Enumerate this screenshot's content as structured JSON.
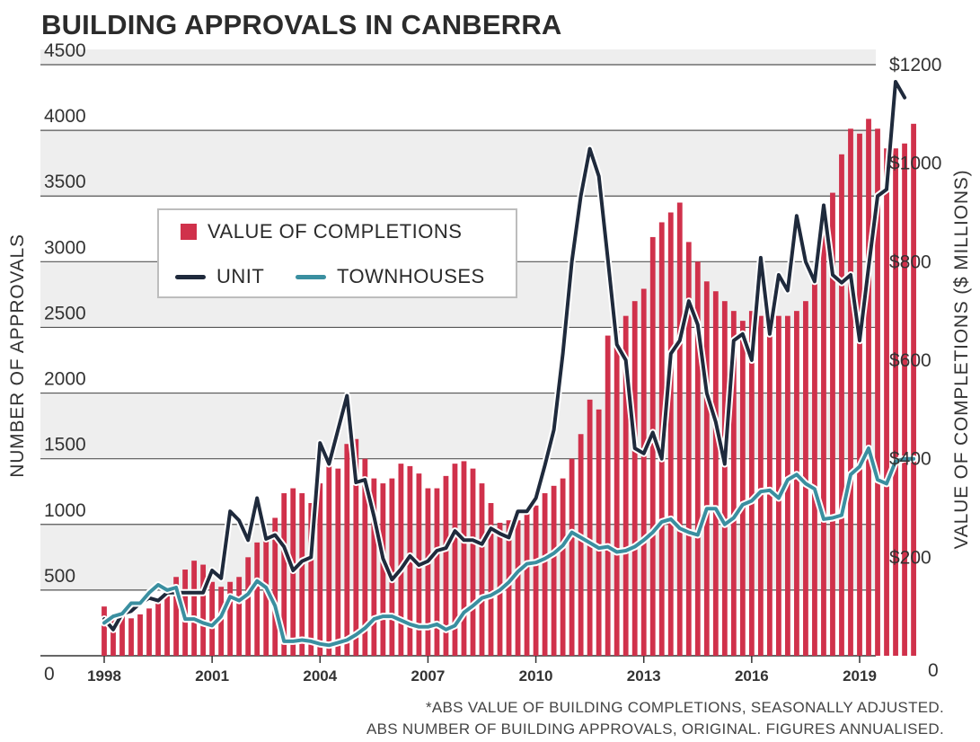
{
  "title": "BUILDING APPROVALS IN CANBERRA",
  "footnotes": [
    "*ABS VALUE OF BUILDING COMPLETIONS, SEASONALLY ADJUSTED.",
    "ABS NUMBER OF BUILDING APPROVALS, ORIGINAL. FIGURES ANNUALISED."
  ],
  "legend": {
    "completions": "VALUE OF COMPLETIONS",
    "unit": "UNIT",
    "townhouses": "TOWNHOUSES"
  },
  "colors": {
    "bars": "#d0314b",
    "unit": "#1f2a3c",
    "townhouses": "#3a8fa0",
    "band": "#eeeeee",
    "grid": "#555555"
  },
  "chart_data": {
    "type": "bar+line",
    "title": "BUILDING APPROVALS IN CANBERRA",
    "x_range": [
      1998,
      2019.5
    ],
    "x_ticks": [
      "1998",
      "2001",
      "2004",
      "2007",
      "2010",
      "2013",
      "2016",
      "2019"
    ],
    "y_left": {
      "label": "NUMBER OF APPROVALS",
      "range": [
        0,
        4600
      ],
      "ticks": [
        0,
        500,
        1000,
        1500,
        2000,
        2500,
        3000,
        3500,
        4000,
        4500
      ],
      "tick_labels": [
        "0",
        "500",
        "1000",
        "1500",
        "2000",
        "2500",
        "3000",
        "3500",
        "4000",
        "4500"
      ]
    },
    "y_right": {
      "label": "VALUE OF COMPLETIONS ($ MILLIONS)",
      "range": [
        0,
        1226
      ],
      "ticks": [
        0,
        200,
        400,
        600,
        800,
        1000,
        1200
      ],
      "tick_labels": [
        "0",
        "$200",
        "$400",
        "$600",
        "$800",
        "$1000",
        "$1200"
      ]
    },
    "bars": {
      "name": "VALUE OF COMPLETIONS",
      "axis": "right",
      "x_start": 1998,
      "x_step": 0.25,
      "values": [
        100,
        84,
        80,
        76,
        84,
        96,
        110,
        130,
        160,
        175,
        193,
        185,
        150,
        140,
        150,
        160,
        200,
        230,
        250,
        280,
        330,
        340,
        330,
        310,
        350,
        390,
        380,
        430,
        440,
        400,
        360,
        350,
        360,
        390,
        385,
        370,
        340,
        340,
        365,
        390,
        395,
        380,
        350,
        310,
        270,
        275,
        275,
        295,
        305,
        330,
        345,
        360,
        400,
        450,
        520,
        500,
        650,
        660,
        690,
        720,
        745,
        850,
        880,
        900,
        920,
        840,
        800,
        760,
        740,
        720,
        700,
        680,
        700,
        690,
        690,
        690,
        690,
        700,
        720,
        770,
        880,
        940,
        1018,
        1070,
        1060,
        1090,
        1070,
        1030,
        1030,
        1040,
        1080
      ]
    },
    "series": [
      {
        "name": "UNIT",
        "axis": "left",
        "x_start": 1998,
        "x_step": 0.25,
        "values": [
          280,
          200,
          320,
          340,
          400,
          440,
          420,
          480,
          480,
          480,
          480,
          480,
          650,
          590,
          1100,
          1030,
          880,
          1200,
          890,
          920,
          830,
          650,
          720,
          750,
          1620,
          1460,
          1720,
          1980,
          1320,
          1340,
          1060,
          740,
          580,
          660,
          760,
          690,
          720,
          800,
          820,
          950,
          880,
          880,
          850,
          970,
          930,
          900,
          1100,
          1100,
          1200,
          1450,
          1720,
          2300,
          3000,
          3500,
          3860,
          3650,
          3020,
          2370,
          2250,
          1580,
          1540,
          1700,
          1500,
          2300,
          2400,
          2700,
          2520,
          2000,
          1780,
          1460,
          2400,
          2450,
          2250,
          3030,
          2450,
          2900,
          2780,
          3350,
          3000,
          2850,
          3430,
          2900,
          2840,
          2900,
          2400,
          2960,
          3500,
          3550,
          4370,
          4250
        ]
      },
      {
        "name": "TOWNHOUSES",
        "axis": "left",
        "x_start": 1998,
        "x_step": 0.25,
        "values": [
          250,
          300,
          320,
          400,
          400,
          480,
          540,
          500,
          520,
          280,
          280,
          250,
          230,
          300,
          450,
          420,
          470,
          570,
          520,
          380,
          110,
          110,
          120,
          110,
          90,
          80,
          100,
          120,
          160,
          210,
          280,
          300,
          300,
          270,
          240,
          220,
          220,
          240,
          200,
          230,
          330,
          380,
          440,
          460,
          500,
          560,
          640,
          700,
          710,
          740,
          780,
          840,
          940,
          900,
          860,
          820,
          830,
          790,
          800,
          830,
          880,
          940,
          1020,
          1040,
          970,
          940,
          920,
          1120,
          1120,
          1000,
          1050,
          1150,
          1180,
          1250,
          1260,
          1200,
          1340,
          1380,
          1310,
          1270,
          1040,
          1050,
          1070,
          1380,
          1440,
          1580,
          1340,
          1310,
          1480,
          1500,
          1500
        ]
      }
    ]
  }
}
